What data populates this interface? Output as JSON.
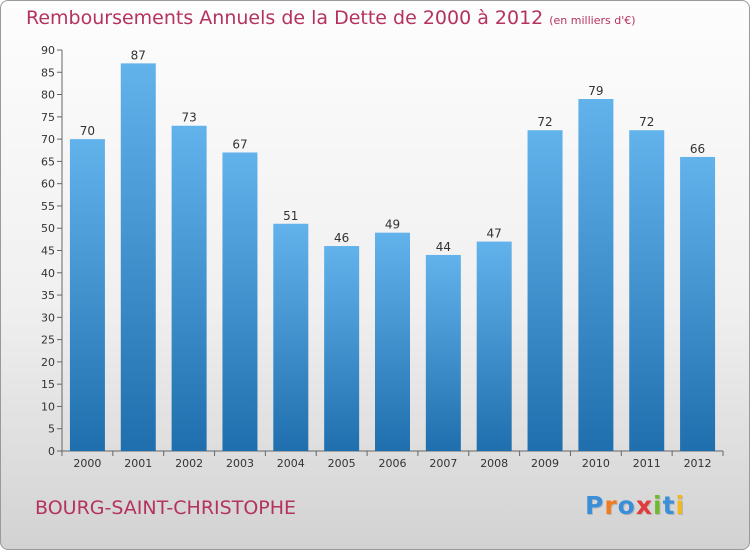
{
  "header": {
    "title": "Remboursements Annuels de la Dette de 2000 à 2012",
    "unit": "(en milliers d'€)"
  },
  "footer": {
    "commune": "BOURG-SAINT-CHRISTOPHE",
    "logo_text": "Proxiti"
  },
  "colors": {
    "title": "#b5325c",
    "bar_top": "#62b3ec",
    "bar_bottom": "#1f6fae",
    "logo_letters": [
      "#3b8fd8",
      "#f07b22",
      "#3b8fd8",
      "#e23b3b",
      "#6fb92d",
      "#3b8fd8",
      "#f0b722"
    ]
  },
  "chart_data": {
    "type": "bar",
    "categories": [
      "2000",
      "2001",
      "2002",
      "2003",
      "2004",
      "2005",
      "2006",
      "2007",
      "2008",
      "2009",
      "2010",
      "2011",
      "2012"
    ],
    "values": [
      70,
      87,
      73,
      67,
      51,
      46,
      49,
      44,
      47,
      72,
      79,
      72,
      66
    ],
    "ylim": [
      0,
      90
    ],
    "yticks": [
      0,
      5,
      10,
      15,
      20,
      25,
      30,
      35,
      40,
      45,
      50,
      55,
      60,
      65,
      70,
      75,
      80,
      85,
      90
    ],
    "grid": false,
    "legend": "none"
  }
}
